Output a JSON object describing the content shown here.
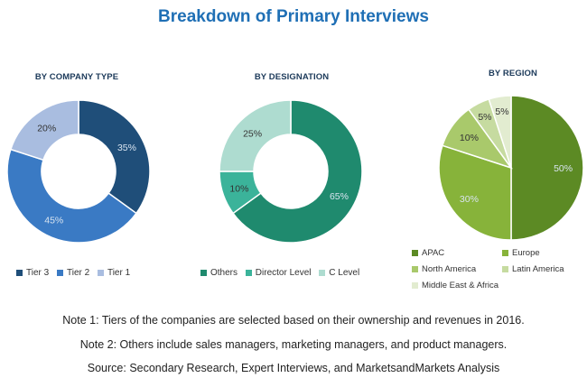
{
  "title": "Breakdown of Primary Interviews",
  "chart_data": [
    {
      "type": "pie",
      "title": "BY COMPANY TYPE",
      "slices": [
        {
          "name": "Tier 3",
          "value": 35,
          "label": "35%",
          "color": "#1f4e79"
        },
        {
          "name": "Tier 2",
          "value": 45,
          "label": "45%",
          "color": "#3a7ac4"
        },
        {
          "name": "Tier 1",
          "value": 20,
          "label": "20%",
          "color": "#a9bde0"
        }
      ]
    },
    {
      "type": "pie",
      "title": "BY DESIGNATION",
      "slices": [
        {
          "name": "Others",
          "value": 65,
          "label": "65%",
          "color": "#1f8a6e"
        },
        {
          "name": "Director Level",
          "value": 10,
          "label": "10%",
          "color": "#3bb39a"
        },
        {
          "name": "C Level",
          "value": 25,
          "label": "25%",
          "color": "#aedcd0"
        }
      ]
    },
    {
      "type": "pie",
      "title": "BY REGION",
      "slices": [
        {
          "name": "APAC",
          "value": 50,
          "label": "50%",
          "color": "#5c8a24"
        },
        {
          "name": "Europe",
          "value": 30,
          "label": "30%",
          "color": "#87b33a"
        },
        {
          "name": "North America",
          "value": 10,
          "label": "10%",
          "color": "#a9c96b"
        },
        {
          "name": "Latin America",
          "value": 5,
          "label": "5%",
          "color": "#c6dba0"
        },
        {
          "name": "Middle East & Africa",
          "value": 5,
          "label": "5%",
          "color": "#e2ecd0"
        }
      ]
    }
  ],
  "notes": {
    "note1": "Note 1: Tiers of the companies are selected based on their ownership and revenues in 2016.",
    "note2": "Note 2: Others include sales managers, marketing managers, and product managers.",
    "source": "Source: Secondary Research, Expert Interviews, and MarketsandMarkets Analysis"
  }
}
